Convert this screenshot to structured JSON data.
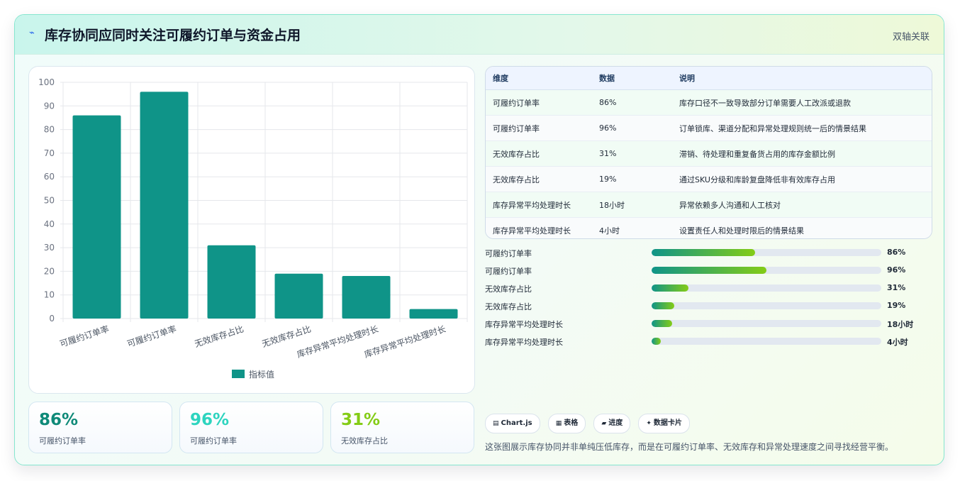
{
  "header": {
    "icon": "lightning-icon",
    "title": "库存协同应同时关注可履约订单与资金占用",
    "badge": "双轴关联"
  },
  "chart_data": {
    "type": "bar",
    "categories": [
      "可履约订单率",
      "可履约订单率",
      "无效库存占比",
      "无效库存占比",
      "库存异常平均处理时长",
      "库存异常平均处理时长"
    ],
    "series": [
      {
        "name": "指标值",
        "values": [
          86,
          96,
          31,
          19,
          18,
          4
        ]
      }
    ],
    "ylim": [
      0,
      100
    ],
    "yticks": [
      0,
      10,
      20,
      30,
      40,
      50,
      60,
      70,
      80,
      90,
      100
    ],
    "grid": true,
    "legend": "bottom",
    "color": "#0f9488"
  },
  "kpis": [
    {
      "value": "86%",
      "label": "可履约订单率",
      "color": "#0f8a78"
    },
    {
      "value": "96%",
      "label": "可履约订单率",
      "color": "#2dd4bf"
    },
    {
      "value": "31%",
      "label": "无效库存占比",
      "color": "#84cc16"
    }
  ],
  "table": {
    "headers": [
      "维度",
      "数据",
      "说明"
    ],
    "rows": [
      [
        "可履约订单率",
        "86%",
        "库存口径不一致导致部分订单需要人工改派或退款"
      ],
      [
        "可履约订单率",
        "96%",
        "订单锁库、渠道分配和异常处理规则统一后的情景结果"
      ],
      [
        "无效库存占比",
        "31%",
        "滞销、待处理和重复备货占用的库存金额比例"
      ],
      [
        "无效库存占比",
        "19%",
        "通过SKU分级和库龄复盘降低非有效库存占用"
      ],
      [
        "库存异常平均处理时长",
        "18小时",
        "异常依赖多人沟通和人工核对"
      ],
      [
        "库存异常平均处理时长",
        "4小时",
        "设置责任人和处理时限后的情景结果"
      ]
    ]
  },
  "progress": [
    {
      "label": "可履约订单率",
      "value": "86%",
      "fill": 0.45
    },
    {
      "label": "可履约订单率",
      "value": "96%",
      "fill": 0.5
    },
    {
      "label": "无效库存占比",
      "value": "31%",
      "fill": 0.16
    },
    {
      "label": "无效库存占比",
      "value": "19%",
      "fill": 0.1
    },
    {
      "label": "库存异常平均处理时长",
      "value": "18小时",
      "fill": 0.09
    },
    {
      "label": "库存异常平均处理时长",
      "value": "4小时",
      "fill": 0.04
    }
  ],
  "chips": [
    {
      "icon": "chart-icon",
      "glyph": "▤",
      "label": "Chart.js"
    },
    {
      "icon": "table-icon",
      "glyph": "▦",
      "label": "表格"
    },
    {
      "icon": "progress-icon",
      "glyph": "▰",
      "label": "进度"
    },
    {
      "icon": "sparkle-icon",
      "glyph": "✦",
      "label": "数据卡片"
    }
  ],
  "note": "这张图展示库存协同并非单纯压低库存，而是在可履约订单率、无效库存和异常处理速度之间寻找经营平衡。"
}
